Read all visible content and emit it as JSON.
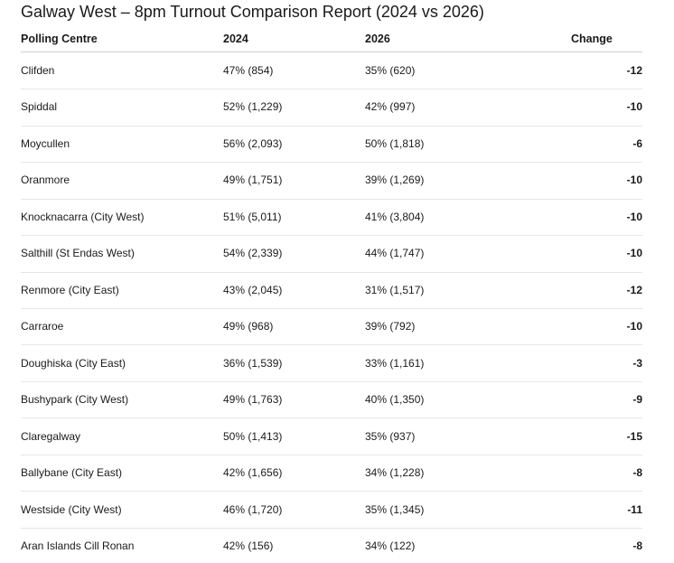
{
  "header": {
    "title": "Galway West – 8pm Turnout Comparison Report (2024 vs 2026)"
  },
  "table": {
    "columns": [
      "Polling Centre",
      "2024",
      "2026",
      "Change"
    ],
    "rows": [
      [
        "Clifden",
        "47% (854)",
        "35% (620)",
        "-12"
      ],
      [
        "Spiddal",
        "52% (1,229)",
        "42% (997)",
        "-10"
      ],
      [
        "Moycullen",
        "56% (2,093)",
        "50% (1,818)",
        "-6"
      ],
      [
        "Oranmore",
        "49% (1,751)",
        "39% (1,269)",
        "-10"
      ],
      [
        "Knocknacarra (City West)",
        "51% (5,011)",
        "41% (3,804)",
        "-10"
      ],
      [
        "Salthill (St Endas West)",
        "54% (2,339)",
        "44% (1,747)",
        "-10"
      ],
      [
        "Renmore (City East)",
        "43% (2,045)",
        "31% (1,517)",
        "-12"
      ],
      [
        "Carraroe",
        "49% (968)",
        "39% (792)",
        "-10"
      ],
      [
        "Doughiska (City East)",
        "36% (1,539)",
        "33% (1,161)",
        "-3"
      ],
      [
        "Bushypark (City West)",
        "49% (1,763)",
        "40% (1,350)",
        "-9"
      ],
      [
        "Claregalway",
        "50% (1,413)",
        "35% (937)",
        "-15"
      ],
      [
        "Ballybane (City East)",
        "42% (1,656)",
        "34% (1,228)",
        "-8"
      ],
      [
        "Westside (City West)",
        "46% (1,720)",
        "35% (1,345)",
        "-11"
      ],
      [
        "Aran Islands Cill Ronan",
        "42% (156)",
        "34% (122)",
        "-8"
      ]
    ]
  }
}
